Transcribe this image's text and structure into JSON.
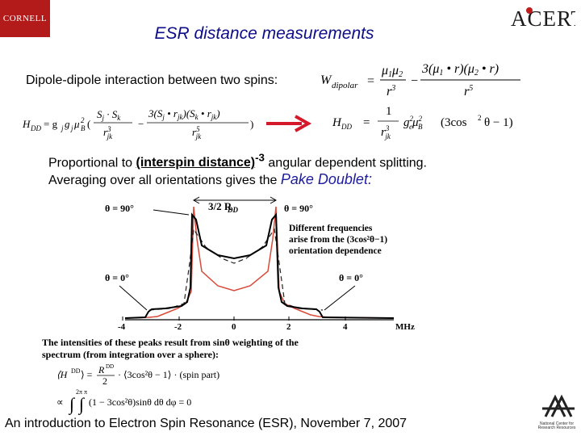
{
  "header": {
    "left_logo": "CORNELL",
    "right_logo": "ACERT",
    "title": "ESR distance measurements"
  },
  "dipole": {
    "label": "Dipole-dipole interaction between two spins:"
  },
  "equations": {
    "w_dipolar": {
      "lhs": "W",
      "lhs_sub": "dipolar"
    },
    "h_dd_full": {
      "lhs": "H",
      "lhs_sub": "DD"
    },
    "h_dd_simple": {
      "lhs": "H",
      "lhs_sub": "DD",
      "factor": "(3cos",
      "tail": "θ − 1)"
    }
  },
  "body": {
    "line1_prefix": "Proportional to ",
    "line1_emph": "(interspin distance)",
    "line1_exp": "-3",
    "line1_suffix": " angular dependent splitting.",
    "line2_prefix": "Averaging over all orientations gives the ",
    "line2_emph": "Pake Doublet:"
  },
  "figure": {
    "theta_left_top": "θ = 90°",
    "theta_right_top": "θ = 90°",
    "theta_left_bottom": "θ = 0°",
    "theta_right_bottom": "θ = 0°",
    "splitting_label": "3/2 R",
    "splitting_sub": "DD",
    "annotation": [
      "Different frequencies",
      "arise from the (3cos²θ−1)",
      "orientation dependence"
    ],
    "x_unit": "MHz",
    "x_ticks": [
      "-4",
      "-2",
      "0",
      "2",
      "4"
    ],
    "caption": [
      "The intensities of these peaks result from sinθ weighting of the",
      "spectrum (from integration over a sphere):"
    ]
  },
  "footer": {
    "text": "An introduction to Electron Spin Resonance (ESR), November 7, 2007",
    "corner_logo_label": "National Center for Research Resources"
  },
  "colors": {
    "title": "#0d0d8a",
    "arrow": "#d4192b",
    "red_curve": "#d94a3a",
    "cornell": "#b31b1b"
  }
}
